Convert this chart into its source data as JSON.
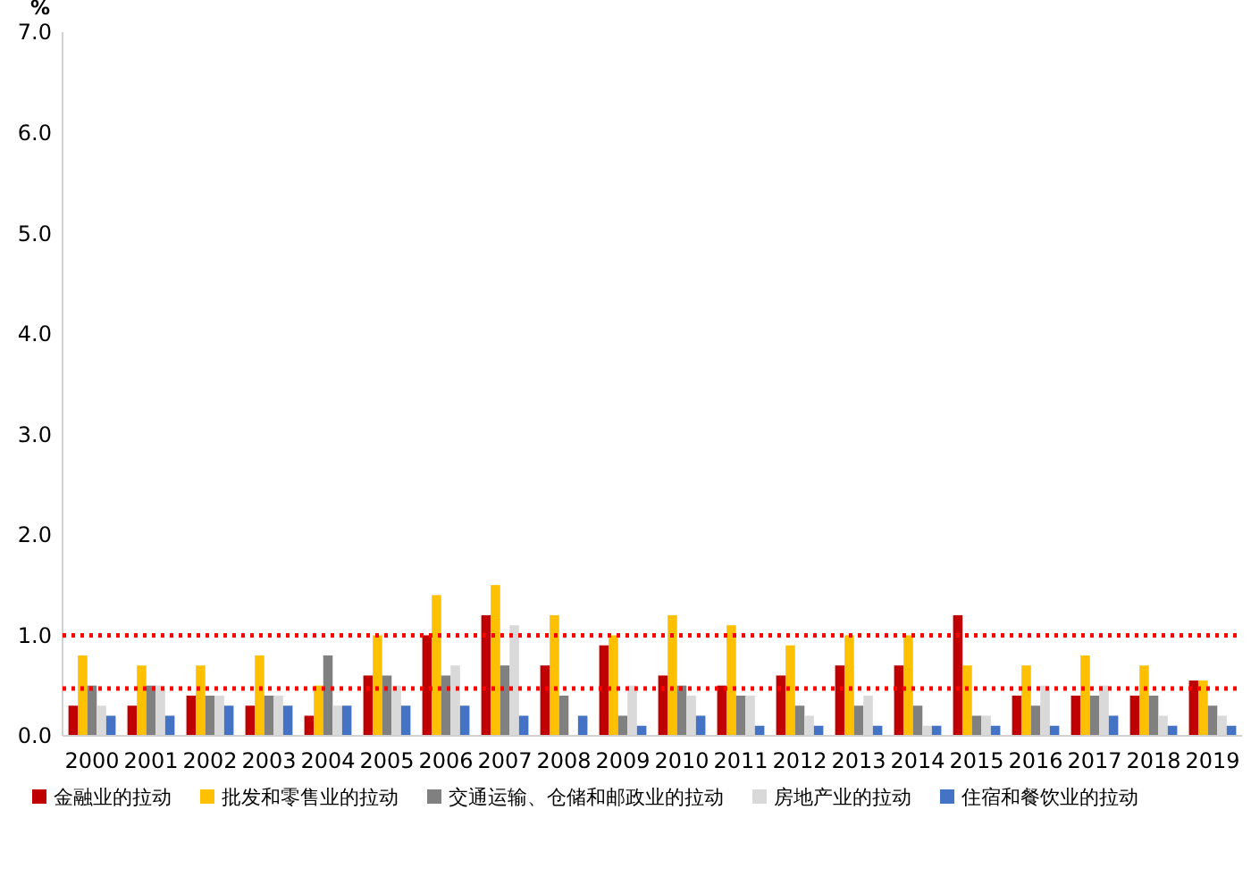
{
  "chart_data": {
    "type": "bar",
    "ylabel": "%",
    "categories": [
      "2000",
      "2001",
      "2002",
      "2003",
      "2004",
      "2005",
      "2006",
      "2007",
      "2008",
      "2009",
      "2010",
      "2011",
      "2012",
      "2013",
      "2014",
      "2015",
      "2016",
      "2017",
      "2018",
      "2019"
    ],
    "series": [
      {
        "name": "金融业的拉动",
        "color": "#c00000",
        "values": [
          0.3,
          0.3,
          0.4,
          0.3,
          0.2,
          0.6,
          1.0,
          1.2,
          0.7,
          0.9,
          0.6,
          0.5,
          0.6,
          0.7,
          0.7,
          1.2,
          0.4,
          0.4,
          0.4,
          0.55
        ]
      },
      {
        "name": "批发和零售业的拉动",
        "color": "#ffc000",
        "values": [
          0.8,
          0.7,
          0.7,
          0.8,
          0.5,
          1.0,
          1.4,
          1.5,
          1.2,
          1.0,
          1.2,
          1.1,
          0.9,
          1.0,
          1.0,
          0.7,
          0.7,
          0.8,
          0.7,
          0.55
        ]
      },
      {
        "name": "交通运输、仓储和邮政业的拉动",
        "color": "#808080",
        "values": [
          0.5,
          0.5,
          0.4,
          0.4,
          0.8,
          0.6,
          0.6,
          0.7,
          0.4,
          0.2,
          0.5,
          0.4,
          0.3,
          0.3,
          0.3,
          0.2,
          0.3,
          0.4,
          0.4,
          0.3
        ]
      },
      {
        "name": "房地产业的拉动",
        "color": "#d9d9d9",
        "values": [
          0.3,
          0.5,
          0.4,
          0.4,
          0.3,
          0.5,
          0.7,
          1.1,
          0,
          0.5,
          0.4,
          0.4,
          0.2,
          0.4,
          0.1,
          0.2,
          0.5,
          0.5,
          0.2,
          0.2
        ]
      },
      {
        "name": "住宿和餐饮业的拉动",
        "color": "#4472c4",
        "values": [
          0.2,
          0.2,
          0.3,
          0.3,
          0.3,
          0.3,
          0.3,
          0.2,
          0.2,
          0.1,
          0.2,
          0.1,
          0.1,
          0.1,
          0.1,
          0.1,
          0.1,
          0.2,
          0.1,
          0.1
        ]
      }
    ],
    "ylim": [
      0,
      7
    ],
    "yticks": [
      {
        "value": 0,
        "label": "0.0"
      },
      {
        "value": 1,
        "label": "1.0"
      },
      {
        "value": 2,
        "label": "2.0"
      },
      {
        "value": 3,
        "label": "3.0"
      },
      {
        "value": 4,
        "label": "4.0"
      },
      {
        "value": 5,
        "label": "5.0"
      },
      {
        "value": 6,
        "label": "6.0"
      },
      {
        "value": 7,
        "label": "7.0"
      }
    ],
    "ref_lines": [
      {
        "axis": "y",
        "value": 1.0,
        "color": "#ff0000",
        "line_style": "dotted"
      },
      {
        "axis": "y",
        "value": 0.47,
        "color": "#ff0000",
        "line_style": "dotted"
      }
    ],
    "grid": false,
    "legend": "bottom"
  }
}
